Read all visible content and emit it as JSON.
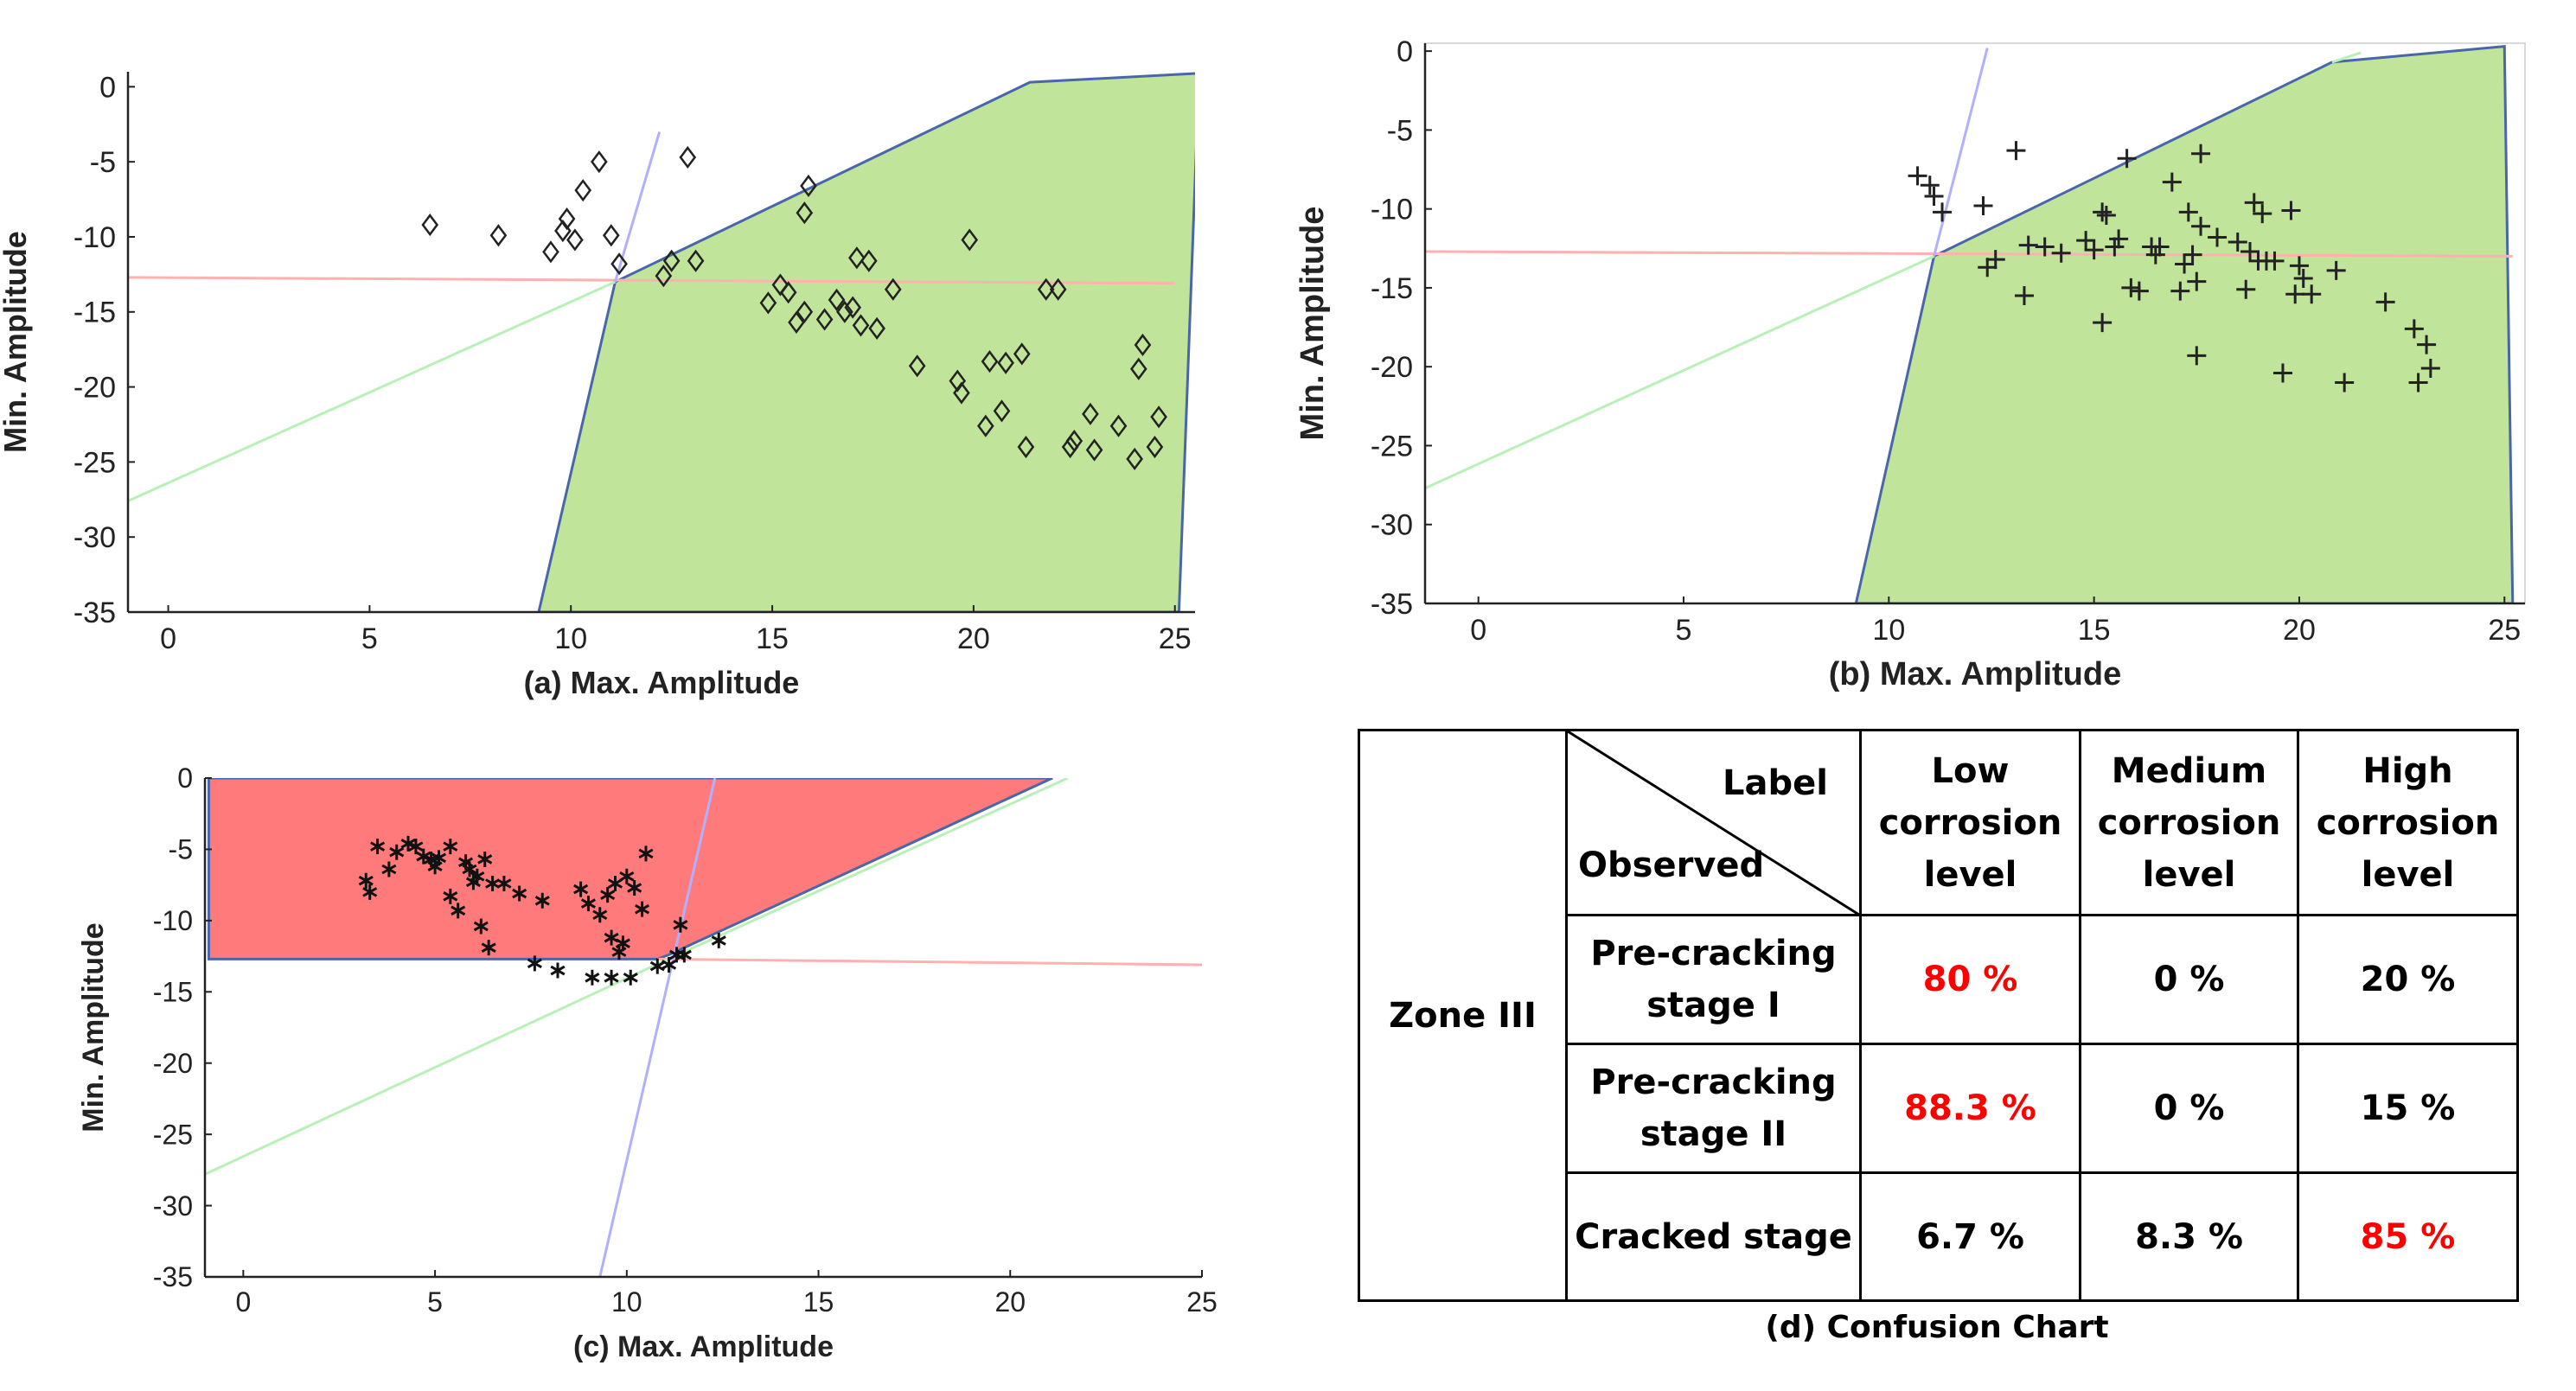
{
  "chart_data": [
    {
      "type": "scatter",
      "panel": "a",
      "caption_prefix": "(a)",
      "xlabel": "Max. Amplitude",
      "ylabel": "Min. Amplitude",
      "xlim": [
        -1,
        25.5
      ],
      "ylim": [
        -35,
        1
      ],
      "xticks": [
        0,
        5,
        10,
        15,
        20,
        25
      ],
      "yticks": [
        0,
        -5,
        -10,
        -15,
        -20,
        -25,
        -30,
        -35
      ],
      "marker": "diamond",
      "region_color": "#c0e49a",
      "region": [
        [
          9.2,
          -35
        ],
        [
          11.1,
          -13
        ],
        [
          21.4,
          0.3
        ],
        [
          25.6,
          0.9
        ],
        [
          25.1,
          -35
        ]
      ],
      "boundary_lines": [
        {
          "color": "#ffb0b0",
          "points": [
            [
              -1,
              -12.7
            ],
            [
              25,
              -13.1
            ]
          ]
        },
        {
          "color": "#b8f0b8",
          "points": [
            [
              -1,
              -27.6
            ],
            [
              11.1,
              -13
            ]
          ]
        },
        {
          "color": "#b0b0ff",
          "points": [
            [
              11.1,
              -13
            ],
            [
              12.2,
              -3
            ]
          ]
        }
      ],
      "points": [
        [
          6.5,
          -9.2
        ],
        [
          8.2,
          -9.9
        ],
        [
          9.5,
          -11
        ],
        [
          9.8,
          -9.6
        ],
        [
          9.9,
          -8.8
        ],
        [
          10.1,
          -10.2
        ],
        [
          10.3,
          -6.9
        ],
        [
          10.7,
          -5
        ],
        [
          11,
          -9.9
        ],
        [
          11.2,
          -11.8
        ],
        [
          12.3,
          -12.6
        ],
        [
          12.5,
          -11.6
        ],
        [
          12.9,
          -4.7
        ],
        [
          13.1,
          -11.6
        ],
        [
          14.9,
          -14.4
        ],
        [
          15.2,
          -13.2
        ],
        [
          15.4,
          -13.7
        ],
        [
          15.6,
          -15.7
        ],
        [
          15.8,
          -8.4
        ],
        [
          15.8,
          -15
        ],
        [
          15.9,
          -6.6
        ],
        [
          16.3,
          -15.5
        ],
        [
          16.6,
          -14.2
        ],
        [
          16.8,
          -15
        ],
        [
          17,
          -14.7
        ],
        [
          17.1,
          -11.4
        ],
        [
          17.2,
          -15.9
        ],
        [
          17.4,
          -11.6
        ],
        [
          17.6,
          -16.1
        ],
        [
          18,
          -13.5
        ],
        [
          18.6,
          -18.6
        ],
        [
          19.6,
          -19.6
        ],
        [
          19.7,
          -20.4
        ],
        [
          19.9,
          -10.2
        ],
        [
          20.3,
          -22.6
        ],
        [
          20.4,
          -18.3
        ],
        [
          20.7,
          -21.6
        ],
        [
          20.8,
          -18.4
        ],
        [
          21.2,
          -17.8
        ],
        [
          21.3,
          -24
        ],
        [
          21.8,
          -13.5
        ],
        [
          22.1,
          -13.5
        ],
        [
          22.4,
          -24
        ],
        [
          22.5,
          -23.6
        ],
        [
          22.9,
          -21.8
        ],
        [
          23,
          -24.2
        ],
        [
          23.6,
          -22.6
        ],
        [
          24,
          -24.8
        ],
        [
          24.1,
          -18.8
        ],
        [
          24.2,
          -17.2
        ],
        [
          24.5,
          -24
        ],
        [
          24.6,
          -22
        ]
      ]
    },
    {
      "type": "scatter",
      "panel": "b",
      "caption_prefix": "(b)",
      "xlabel": "Max. Amplitude",
      "ylabel": "Min. Amplitude",
      "xlim": [
        -1.3,
        25.5
      ],
      "ylim": [
        -35,
        0.5
      ],
      "xticks": [
        0,
        5,
        10,
        15,
        20,
        25
      ],
      "yticks": [
        0,
        -5,
        -10,
        -15,
        -20,
        -25,
        -30,
        -35
      ],
      "marker": "plus",
      "region_color": "#c0e49a",
      "region": [
        [
          9.2,
          -35
        ],
        [
          11.1,
          -13
        ],
        [
          20.8,
          -0.7
        ],
        [
          25,
          0.3
        ],
        [
          25.2,
          -35
        ]
      ],
      "boundary_lines": [
        {
          "color": "#ffb0b0",
          "points": [
            [
              -1.3,
              -12.7
            ],
            [
              25.2,
              -13
            ]
          ]
        },
        {
          "color": "#b8f0b8",
          "points": [
            [
              -1.3,
              -27.7
            ],
            [
              11.1,
              -13
            ]
          ]
        },
        {
          "color": "#b8f0b8",
          "points": [
            [
              20.8,
              -0.7
            ],
            [
              21.5,
              -0.1
            ]
          ]
        },
        {
          "color": "#b0b0ff",
          "points": [
            [
              11.1,
              -13
            ],
            [
              12.4,
              0.2
            ]
          ]
        }
      ],
      "points": [
        [
          10.7,
          -7.9
        ],
        [
          11,
          -8.5
        ],
        [
          11.1,
          -9.2
        ],
        [
          11.3,
          -10.2
        ],
        [
          12.3,
          -9.8
        ],
        [
          12.4,
          -13.7
        ],
        [
          12.6,
          -13.2
        ],
        [
          13.1,
          -6.3
        ],
        [
          13.3,
          -15.5
        ],
        [
          13.4,
          -12.3
        ],
        [
          13.8,
          -12.4
        ],
        [
          14.2,
          -12.8
        ],
        [
          14.8,
          -12
        ],
        [
          15,
          -12.6
        ],
        [
          15.2,
          -10.2
        ],
        [
          15.2,
          -17.2
        ],
        [
          15.3,
          -10.4
        ],
        [
          15.5,
          -12.4
        ],
        [
          15.6,
          -11.9
        ],
        [
          15.8,
          -6.8
        ],
        [
          15.9,
          -15
        ],
        [
          16.1,
          -15.2
        ],
        [
          16.4,
          -12.4
        ],
        [
          16.5,
          -12.9
        ],
        [
          16.6,
          -12.4
        ],
        [
          16.9,
          -8.3
        ],
        [
          17.1,
          -15.2
        ],
        [
          17.2,
          -13.5
        ],
        [
          17.3,
          -10.2
        ],
        [
          17.4,
          -12.9
        ],
        [
          17.5,
          -14.6
        ],
        [
          17.5,
          -19.3
        ],
        [
          17.6,
          -11.1
        ],
        [
          17.6,
          -6.5
        ],
        [
          18,
          -11.8
        ],
        [
          18.5,
          -12.1
        ],
        [
          18.7,
          -15.1
        ],
        [
          18.8,
          -12.7
        ],
        [
          18.9,
          -9.6
        ],
        [
          19,
          -13.3
        ],
        [
          19.1,
          -10.3
        ],
        [
          19.2,
          -13.3
        ],
        [
          19.4,
          -13.3
        ],
        [
          19.6,
          -20.4
        ],
        [
          19.8,
          -10.1
        ],
        [
          19.9,
          -15.4
        ],
        [
          20,
          -13.6
        ],
        [
          20.1,
          -14.4
        ],
        [
          20.3,
          -15.4
        ],
        [
          20.9,
          -13.9
        ],
        [
          21.1,
          -21
        ],
        [
          22.1,
          -15.9
        ],
        [
          22.8,
          -17.6
        ],
        [
          22.9,
          -21
        ],
        [
          23.1,
          -18.6
        ],
        [
          23.2,
          -20.1
        ]
      ]
    },
    {
      "type": "scatter",
      "panel": "c",
      "caption_prefix": "(c)",
      "xlabel": "Max. Amplitude",
      "ylabel": "Min. Amplitude",
      "xlim": [
        -1,
        25
      ],
      "ylim": [
        -35,
        0
      ],
      "xticks": [
        0,
        5,
        10,
        15,
        20,
        25
      ],
      "yticks": [
        0,
        -5,
        -10,
        -15,
        -20,
        -25,
        -30,
        -35
      ],
      "marker": "asterisk",
      "region_color": "#ff7b7b",
      "region": [
        [
          -0.9,
          0
        ],
        [
          21.1,
          0
        ],
        [
          11.1,
          -12.4
        ],
        [
          10.8,
          -12.7
        ],
        [
          -0.9,
          -12.7
        ]
      ],
      "boundary_lines": [
        {
          "color": "#ffb0b0",
          "points": [
            [
              10.8,
              -12.7
            ],
            [
              25,
              -13.1
            ]
          ]
        },
        {
          "color": "#b8f0b8",
          "points": [
            [
              -1,
              -27.8
            ],
            [
              11,
              -12.8
            ]
          ]
        },
        {
          "color": "#b8f0b8",
          "points": [
            [
              11,
              -12.8
            ],
            [
              21.5,
              0
            ]
          ]
        },
        {
          "color": "#b0b0ff",
          "points": [
            [
              9.3,
              -35
            ],
            [
              12.3,
              0
            ]
          ]
        }
      ],
      "points": [
        [
          3.2,
          -7.2
        ],
        [
          3.3,
          -8
        ],
        [
          3.5,
          -4.8
        ],
        [
          3.8,
          -6.4
        ],
        [
          4,
          -5.2
        ],
        [
          4.3,
          -4.6
        ],
        [
          4.5,
          -4.8
        ],
        [
          4.7,
          -5.5
        ],
        [
          4.9,
          -5.7
        ],
        [
          5,
          -6.2
        ],
        [
          5.1,
          -5.6
        ],
        [
          5.4,
          -8.3
        ],
        [
          5.4,
          -4.8
        ],
        [
          5.6,
          -9.3
        ],
        [
          5.8,
          -5.9
        ],
        [
          5.9,
          -6.4
        ],
        [
          6,
          -7.3
        ],
        [
          6.1,
          -6.9
        ],
        [
          6.2,
          -10.4
        ],
        [
          6.3,
          -5.7
        ],
        [
          6.4,
          -11.9
        ],
        [
          6.5,
          -7.4
        ],
        [
          6.8,
          -7.4
        ],
        [
          7.2,
          -8.1
        ],
        [
          7.6,
          -13
        ],
        [
          7.8,
          -8.6
        ],
        [
          8.2,
          -13.5
        ],
        [
          8.8,
          -7.8
        ],
        [
          9,
          -8.8
        ],
        [
          9.1,
          -14
        ],
        [
          9.3,
          -9.6
        ],
        [
          9.5,
          -8.2
        ],
        [
          9.6,
          -11.2
        ],
        [
          9.6,
          -14
        ],
        [
          9.7,
          -7.4
        ],
        [
          9.8,
          -12.2
        ],
        [
          9.9,
          -11.6
        ],
        [
          10,
          -6.9
        ],
        [
          10.1,
          -14
        ],
        [
          10.2,
          -7.7
        ],
        [
          10.4,
          -9.2
        ],
        [
          10.5,
          -5.3
        ],
        [
          10.8,
          -13.2
        ],
        [
          11.1,
          -13.1
        ],
        [
          11.3,
          -12.4
        ],
        [
          11.4,
          -10.3
        ],
        [
          11.5,
          -12.4
        ],
        [
          12.4,
          -11.4
        ]
      ]
    }
  ],
  "confusion": {
    "caption": "(d) Confusion Chart",
    "zone": "Zone III",
    "header_label": "Label",
    "header_observed": "Observed",
    "columns": [
      "Low corrosion level",
      "Medium corrosion level",
      "High corrosion level"
    ],
    "rows": [
      {
        "label": "Pre-cracking stage I",
        "values": [
          "80 %",
          "0 %",
          "20 %"
        ],
        "highlight": [
          0
        ]
      },
      {
        "label": "Pre-cracking stage II",
        "values": [
          "88.3 %",
          "0 %",
          "15 %"
        ],
        "highlight": [
          0
        ]
      },
      {
        "label": "Cracked stage",
        "values": [
          "6.7 %",
          "8.3 %",
          "85 %"
        ],
        "highlight": [
          2
        ]
      }
    ],
    "highlight_color": "#ff0000"
  }
}
